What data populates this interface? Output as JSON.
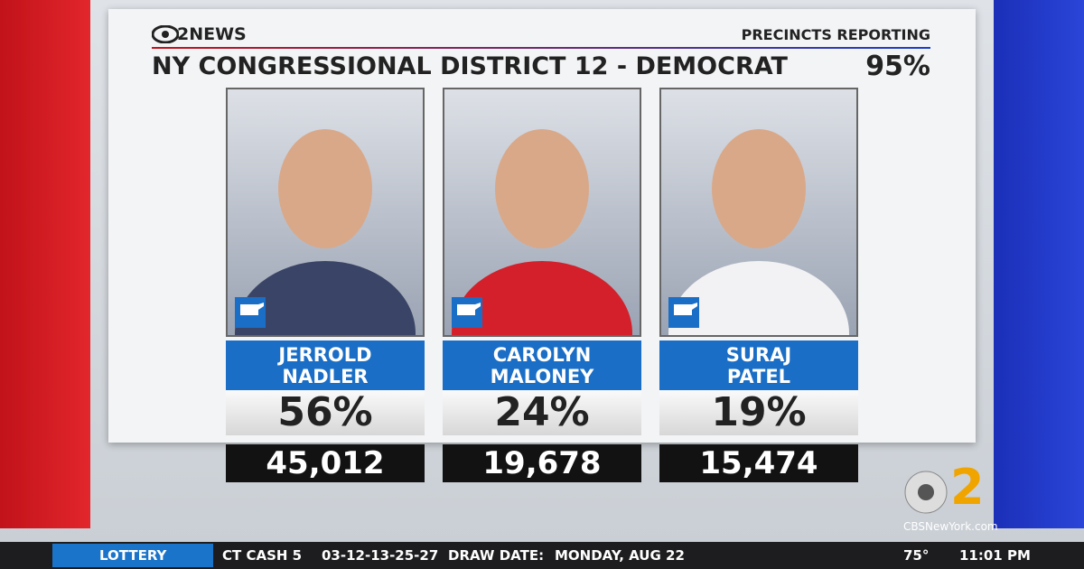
{
  "header": {
    "logo": "2NEWS",
    "title": "NY CONGRESSIONAL DISTRICT 12 - DEMOCRAT",
    "reporting_label": "PRECINCTS REPORTING",
    "reporting_value": "95%"
  },
  "candidates": [
    {
      "first": "JERROLD",
      "last": "NADLER",
      "percent": "56%",
      "votes": "45,012"
    },
    {
      "first": "CAROLYN",
      "last": "MALONEY",
      "percent": "24%",
      "votes": "19,678"
    },
    {
      "first": "SURAJ",
      "last": "PATEL",
      "percent": "19%",
      "votes": "15,474"
    }
  ],
  "station": {
    "logo": "2",
    "site": "CBSNewYork.com"
  },
  "ticker": {
    "section": "LOTTERY",
    "game": "CT CASH 5",
    "numbers": "03-12-13-25-27",
    "draw_label": "DRAW DATE:",
    "draw_date": "MONDAY, AUG 22",
    "temperature": "75°",
    "time": "11:01 PM"
  }
}
